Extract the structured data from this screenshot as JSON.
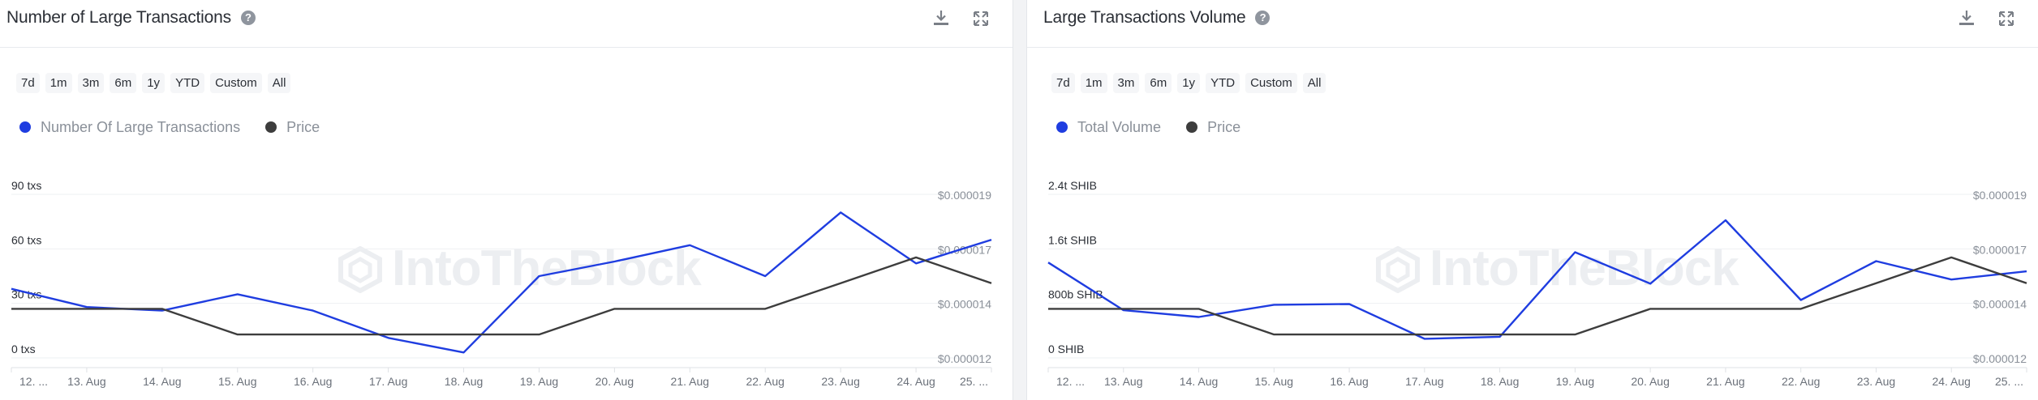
{
  "left": {
    "title": "Number of Large Transactions",
    "ranges": [
      "7d",
      "1m",
      "3m",
      "6m",
      "1y",
      "YTD",
      "Custom",
      "All"
    ],
    "legend": [
      {
        "label": "Number Of Large Transactions",
        "color": "#1f3de0"
      },
      {
        "label": "Price",
        "color": "#3d3d3d"
      }
    ],
    "watermark": "IntoTheBlock",
    "icons": [
      "download-icon",
      "expand-icon"
    ]
  },
  "right": {
    "title": "Large Transactions Volume",
    "ranges": [
      "7d",
      "1m",
      "3m",
      "6m",
      "1y",
      "YTD",
      "Custom",
      "All"
    ],
    "legend": [
      {
        "label": "Total Volume",
        "color": "#1f3de0"
      },
      {
        "label": "Price",
        "color": "#3d3d3d"
      }
    ],
    "watermark": "IntoTheBlock",
    "icons": [
      "download-icon",
      "expand-icon"
    ]
  },
  "chart_data": [
    {
      "type": "line",
      "title": "Number of Large Transactions",
      "x": [
        "12. ...",
        "13. Aug",
        "14. Aug",
        "15. Aug",
        "16. Aug",
        "17. Aug",
        "18. Aug",
        "19. Aug",
        "20. Aug",
        "21. Aug",
        "22. Aug",
        "23. Aug",
        "24. Aug",
        "25. ..."
      ],
      "y_left_ticks": [
        "0 txs",
        "30 txs",
        "60 txs",
        "90 txs"
      ],
      "y_left_lim": [
        0,
        90
      ],
      "y_right_ticks": [
        "$0.000012",
        "$0.000014",
        "$0.000017",
        "$0.000019"
      ],
      "y_right_lim": [
        1.2e-05,
        1.9e-05
      ],
      "grid": true,
      "series": [
        {
          "name": "Number Of Large Transactions",
          "axis": "left",
          "color": "#1f3de0",
          "values": [
            38,
            28,
            26,
            35,
            26,
            11,
            3,
            45,
            53,
            62,
            45,
            80,
            52,
            65
          ]
        },
        {
          "name": "Price",
          "axis": "right",
          "color": "#3d3d3d",
          "values": [
            1.41e-05,
            1.41e-05,
            1.41e-05,
            1.3e-05,
            1.3e-05,
            1.3e-05,
            1.3e-05,
            1.3e-05,
            1.41e-05,
            1.41e-05,
            1.41e-05,
            1.52e-05,
            1.63e-05,
            1.52e-05
          ]
        }
      ]
    },
    {
      "type": "line",
      "title": "Large Transactions Volume",
      "x": [
        "12. ...",
        "13. Aug",
        "14. Aug",
        "15. Aug",
        "16. Aug",
        "17. Aug",
        "18. Aug",
        "19. Aug",
        "20. Aug",
        "21. Aug",
        "22. Aug",
        "23. Aug",
        "24. Aug",
        "25. ..."
      ],
      "y_left_ticks": [
        "0 SHIB",
        "800b SHIB",
        "1.6t SHIB",
        "2.4t SHIB"
      ],
      "y_left_lim": [
        0,
        2400
      ],
      "y_left_unit": "billion SHIB",
      "y_right_ticks": [
        "$0.000012",
        "$0.000014",
        "$0.000017",
        "$0.000019"
      ],
      "y_right_lim": [
        1.2e-05,
        1.9e-05
      ],
      "grid": true,
      "series": [
        {
          "name": "Total Volume",
          "axis": "left",
          "color": "#1f3de0",
          "values": [
            1400,
            700,
            600,
            780,
            790,
            280,
            310,
            1550,
            1090,
            2020,
            850,
            1420,
            1150,
            1270
          ]
        },
        {
          "name": "Price",
          "axis": "right",
          "color": "#3d3d3d",
          "values": [
            1.41e-05,
            1.41e-05,
            1.41e-05,
            1.3e-05,
            1.3e-05,
            1.3e-05,
            1.3e-05,
            1.3e-05,
            1.41e-05,
            1.41e-05,
            1.41e-05,
            1.52e-05,
            1.63e-05,
            1.52e-05
          ]
        }
      ]
    }
  ]
}
